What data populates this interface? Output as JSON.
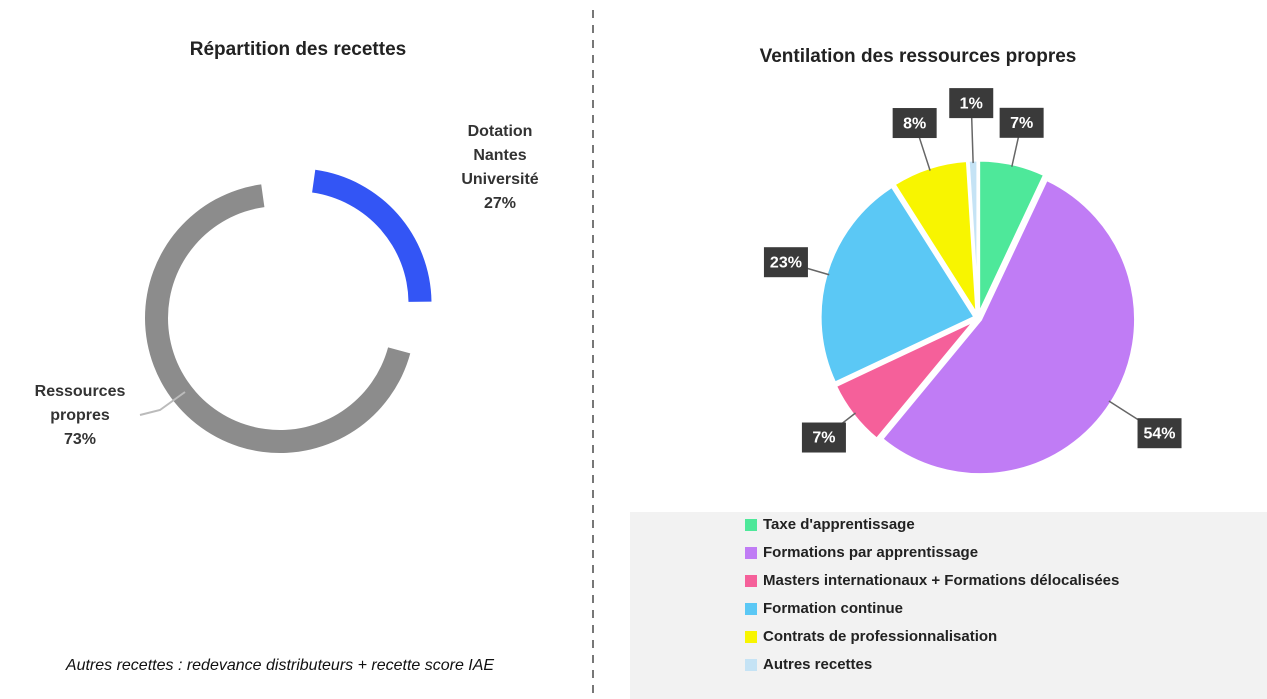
{
  "chart_data": [
    {
      "type": "donut",
      "title": "Répartition des recettes",
      "categories": [
        "Dotation Nantes Université",
        "Ressources propres"
      ],
      "values": [
        27,
        73
      ],
      "value_labels": [
        "27%",
        "73%"
      ],
      "colors": [
        "#3355f5",
        "#8c8c8c"
      ],
      "annotation": "Autres recettes : redevance distributeurs + recette score IAE"
    },
    {
      "type": "pie",
      "title": "Ventilation des ressources propres",
      "categories": [
        "Taxe d'apprentissage",
        "Formations par apprentissage",
        "Masters internationaux + Formations délocalisées",
        "Formation continue",
        "Contrats de professionnalisation",
        "Autres recettes"
      ],
      "values": [
        7,
        54,
        7,
        23,
        8,
        1
      ],
      "value_labels": [
        "7%",
        "54%",
        "7%",
        "23%",
        "8%",
        "1%"
      ],
      "colors": [
        "#4ee89a",
        "#c07cf5",
        "#f5609a",
        "#5bc8f5",
        "#f8f500",
        "#c5e3f5"
      ],
      "legend": "bottom"
    }
  ]
}
